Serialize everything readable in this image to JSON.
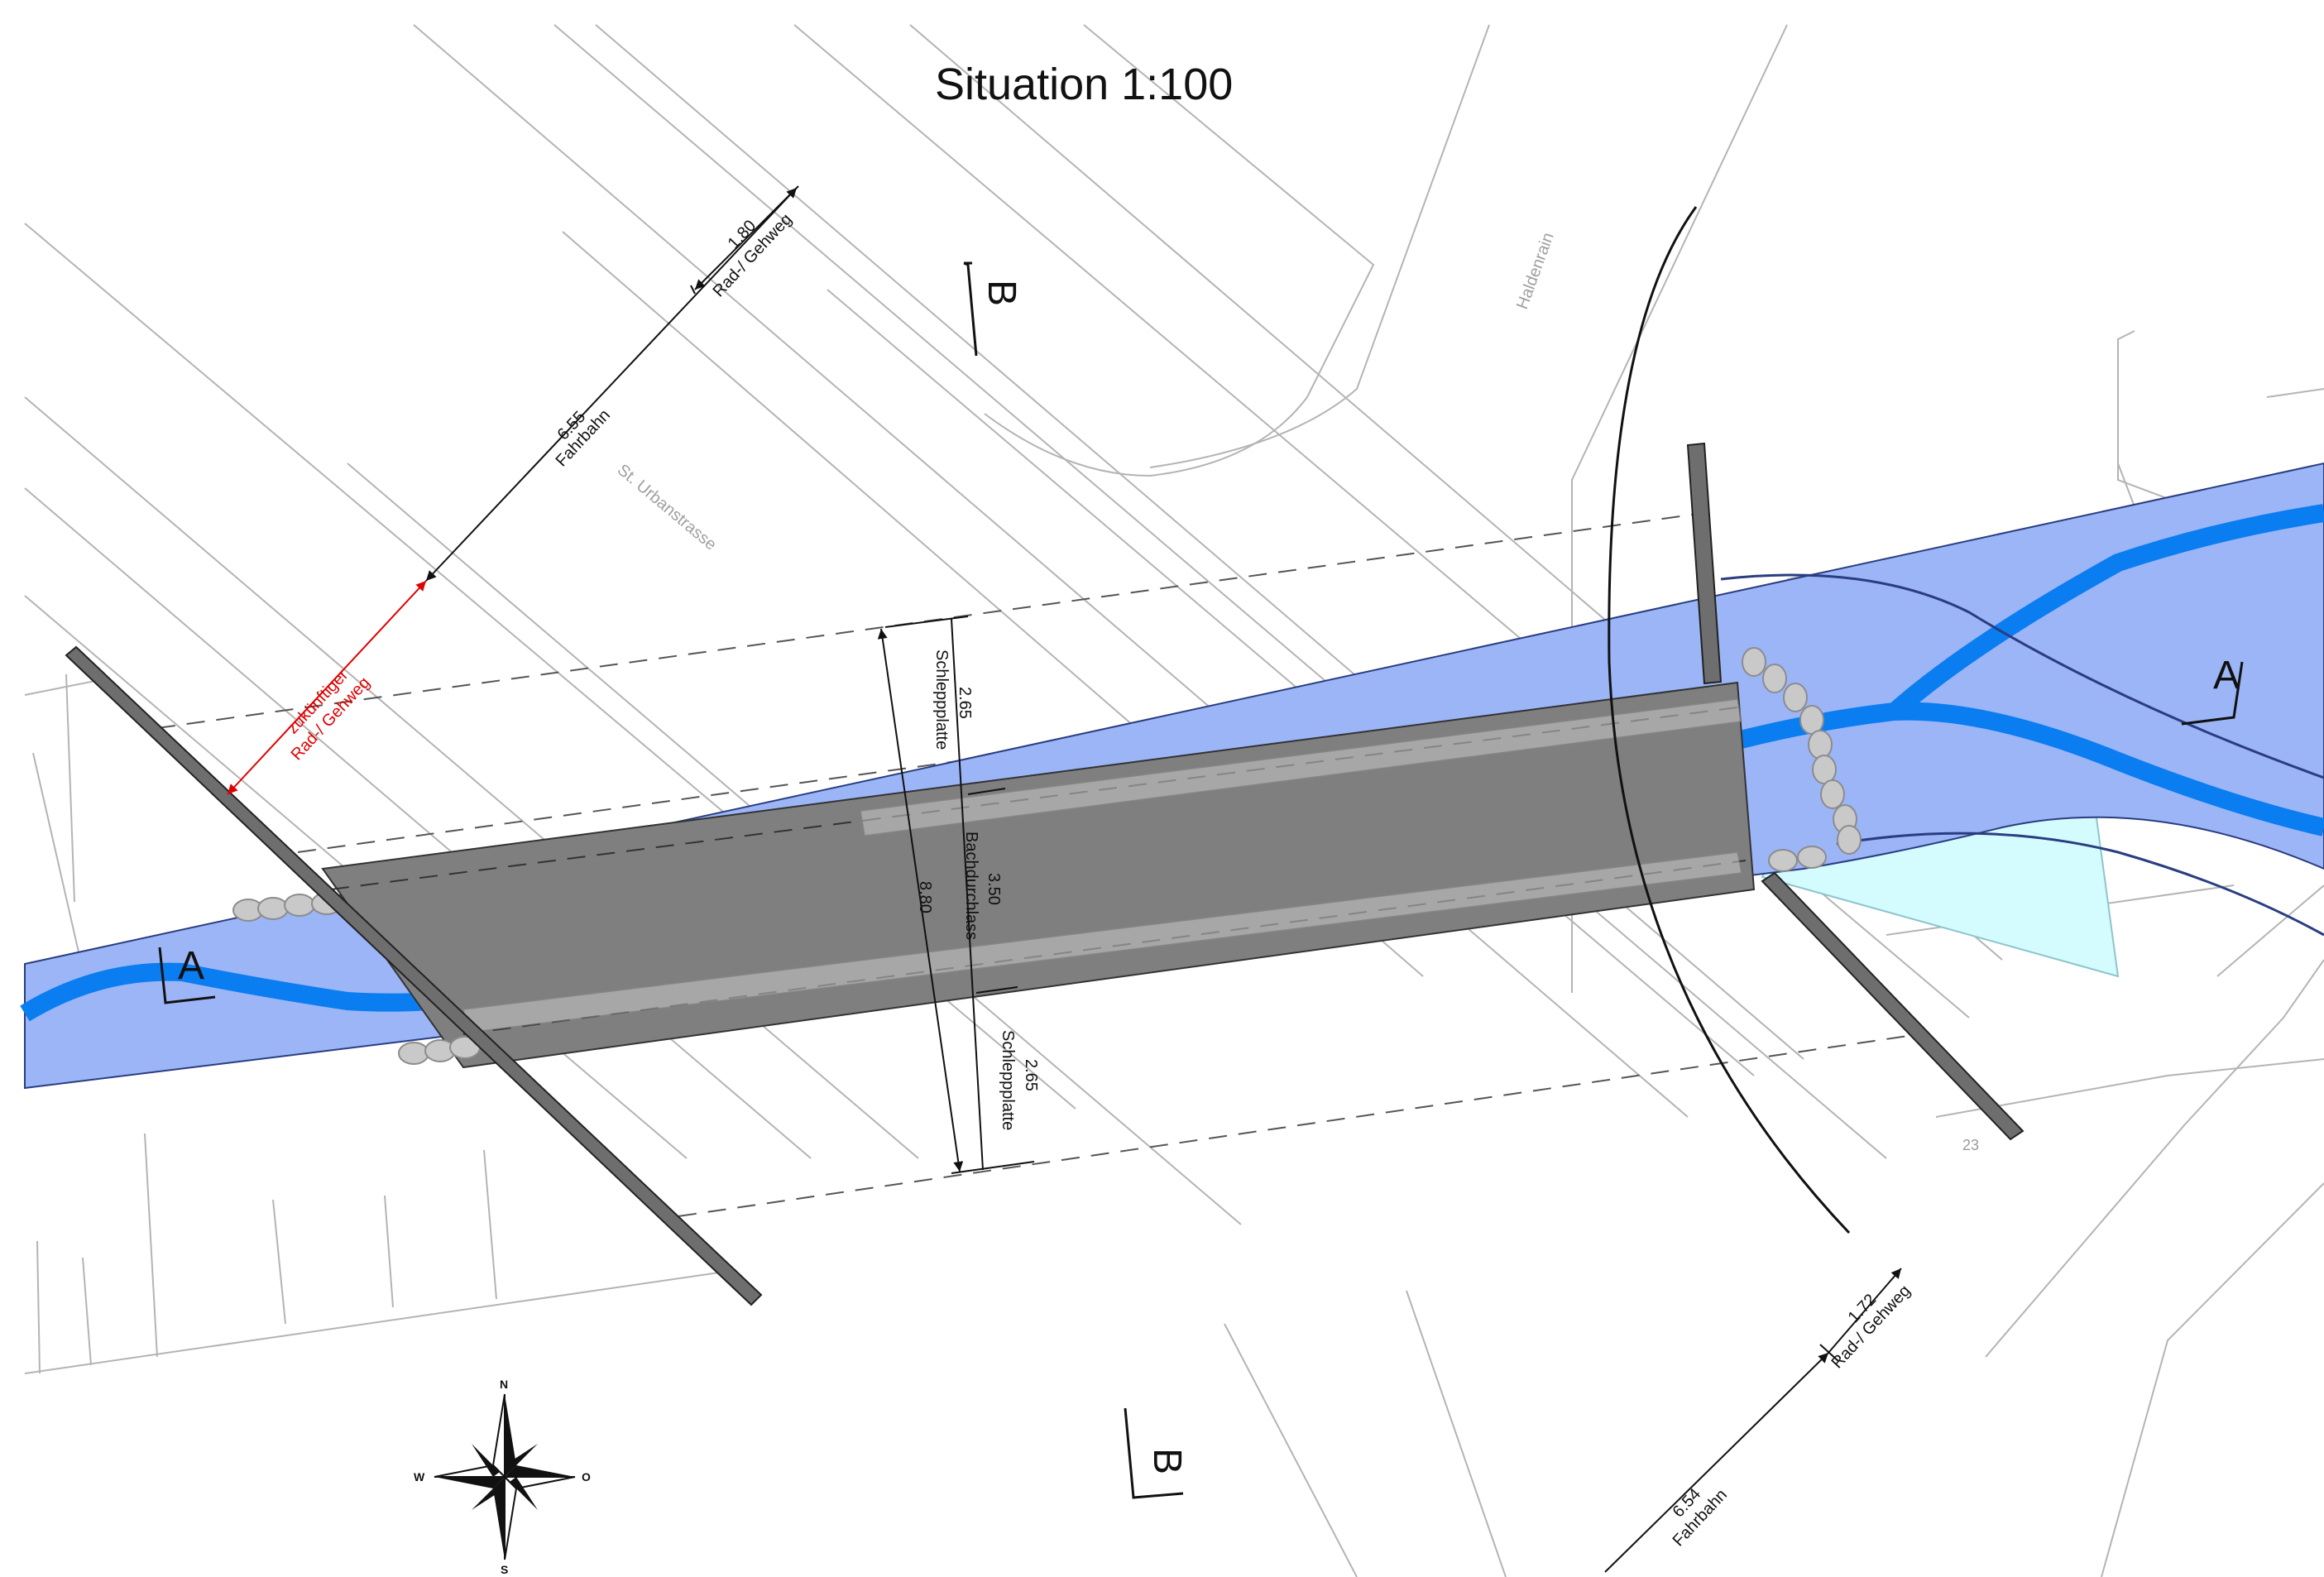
{
  "title": "Situation  1:100",
  "streets": {
    "st_urbanstrasse": "St. Urbanstrasse",
    "haldenrain": "Haldenrain"
  },
  "parcel_number": "23",
  "section_markers": {
    "a": "A",
    "b": "B"
  },
  "dimensions": {
    "top_fahrbahn_value": "6.55",
    "top_fahrbahn_label": "Fahrbahn",
    "top_radweg_value": "1.80",
    "top_radweg_label": "Rad-/ Gehweg",
    "future_line1": "zukünftiger",
    "future_line2": "Rad-/ Gehweg",
    "schlepp1_value": "2.65",
    "schlepp1_label": "Schleppplatte",
    "bach_value": "3.50",
    "bach_label": "Bachdurchlass",
    "total_value": "8.80",
    "schlepp2_value": "2.65",
    "schlepp2_label": "Schleppplatte",
    "bottom_fahrbahn_value": "6.54",
    "bottom_fahrbahn_label": "Fahrbahn",
    "bottom_radweg_value": "1.72",
    "bottom_radweg_label": "Rad-/ Gehweg"
  },
  "compass": {
    "n": "N",
    "s": "S",
    "w": "W",
    "o": "O"
  },
  "colors": {
    "stream_bed": "#9bb5f7",
    "stream_channel": "#0a7df0",
    "culvert": "#7f7f7f",
    "wingwall": "#6e6e6e",
    "pond": "#d4fbfd",
    "future_path": "#e00000",
    "base_lines": "#b4b4b4"
  }
}
